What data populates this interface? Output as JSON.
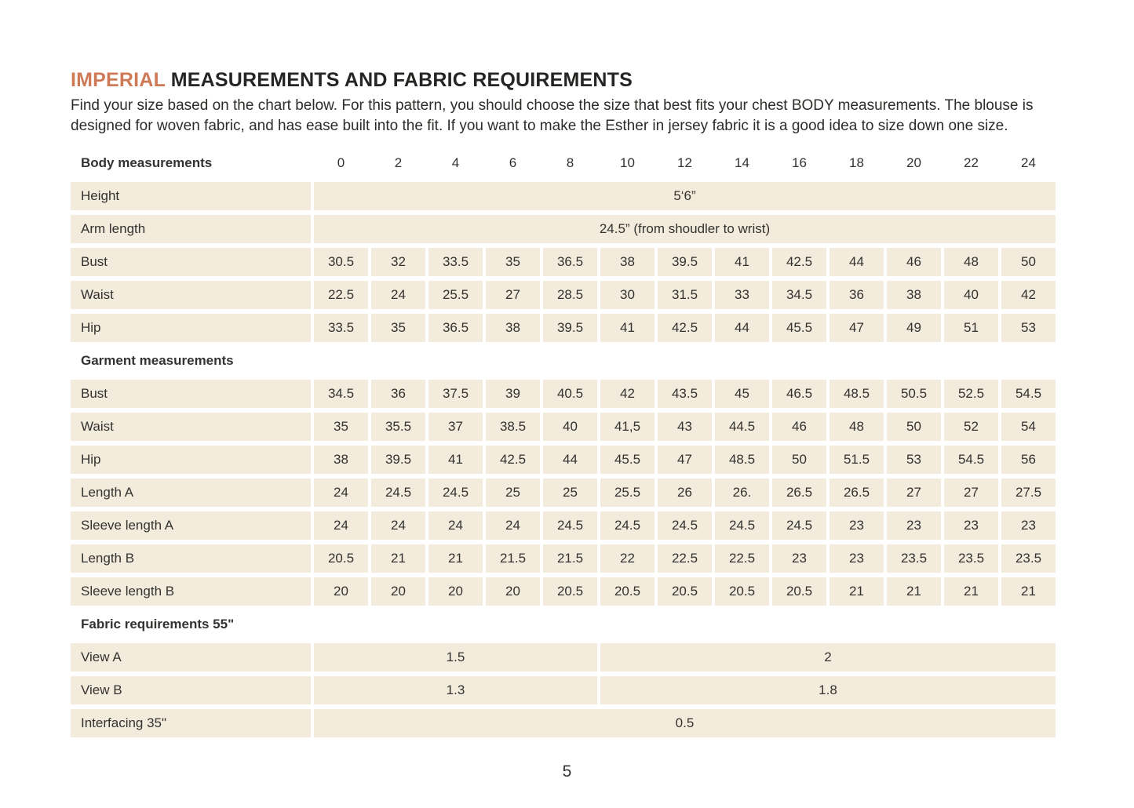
{
  "colors": {
    "accent_orange": "#ce7a57",
    "cell_beige": "#f3ecdc",
    "text_dark": "#2e2c29"
  },
  "page": {
    "title_accent": "IMPERIAL",
    "title_rest": " MEASUREMENTS AND FABRIC REQUIREMENTS",
    "intro": "Find your size based on the chart below. For this pattern, you should choose the size that best fits your chest BODY measurements.  The blouse is designed for woven fabric, and has ease built into the fit. If you want to make the Esther in jersey fabric it is a good idea to size down one size.",
    "page_number": "5"
  },
  "table": {
    "rows": [
      {
        "kind": "sizes",
        "label": "Body measurements",
        "sizes": [
          "0",
          "2",
          "4",
          "6",
          "8",
          "10",
          "12",
          "14",
          "16",
          "18",
          "20",
          "22",
          "24"
        ]
      },
      {
        "kind": "merged",
        "label": "Height",
        "cells": [
          {
            "value": "5‘6”",
            "span": 13
          }
        ]
      },
      {
        "kind": "merged",
        "label": "Arm length",
        "cells": [
          {
            "value": "24.5” (from shoudler to wrist)",
            "span": 13
          }
        ]
      },
      {
        "kind": "data",
        "label": "Bust",
        "values": [
          "30.5",
          "32",
          "33.5",
          "35",
          "36.5",
          "38",
          "39.5",
          "41",
          "42.5",
          "44",
          "46",
          "48",
          "50"
        ]
      },
      {
        "kind": "data",
        "label": "Waist",
        "values": [
          "22.5",
          "24",
          "25.5",
          "27",
          "28.5",
          "30",
          "31.5",
          "33",
          "34.5",
          "36",
          "38",
          "40",
          "42"
        ]
      },
      {
        "kind": "data",
        "label": "Hip",
        "values": [
          "33.5",
          "35",
          "36.5",
          "38",
          "39.5",
          "41",
          "42.5",
          "44",
          "45.5",
          "47",
          "49",
          "51",
          "53"
        ]
      },
      {
        "kind": "section",
        "label": "Garment measurements"
      },
      {
        "kind": "data",
        "label": "Bust",
        "values": [
          "34.5",
          "36",
          "37.5",
          "39",
          "40.5",
          "42",
          "43.5",
          "45",
          "46.5",
          "48.5",
          "50.5",
          "52.5",
          "54.5"
        ]
      },
      {
        "kind": "data",
        "label": "Waist",
        "values": [
          "35",
          "35.5",
          "37",
          "38.5",
          "40",
          "41,5",
          "43",
          "44.5",
          "46",
          "48",
          "50",
          "52",
          "54"
        ]
      },
      {
        "kind": "data",
        "label": "Hip",
        "values": [
          "38",
          "39.5",
          "41",
          "42.5",
          "44",
          "45.5",
          "47",
          "48.5",
          "50",
          "51.5",
          "53",
          "54.5",
          "56"
        ]
      },
      {
        "kind": "data",
        "label": "Length A",
        "values": [
          "24",
          "24.5",
          "24.5",
          "25",
          "25",
          "25.5",
          "26",
          "26.",
          "26.5",
          "26.5",
          "27",
          "27",
          "27.5"
        ]
      },
      {
        "kind": "data",
        "label": "Sleeve length A",
        "values": [
          "24",
          "24",
          "24",
          "24",
          "24.5",
          "24.5",
          "24.5",
          "24.5",
          "24.5",
          "23",
          "23",
          "23",
          "23"
        ]
      },
      {
        "kind": "data",
        "label": "Length B",
        "values": [
          "20.5",
          "21",
          "21",
          "21.5",
          "21.5",
          "22",
          "22.5",
          "22.5",
          "23",
          "23",
          "23.5",
          "23.5",
          "23.5"
        ]
      },
      {
        "kind": "data",
        "label": "Sleeve length B",
        "values": [
          "20",
          "20",
          "20",
          "20",
          "20.5",
          "20.5",
          "20.5",
          "20.5",
          "20.5",
          "21",
          "21",
          "21",
          "21"
        ]
      },
      {
        "kind": "section",
        "label": "Fabric requirements 55\""
      },
      {
        "kind": "merged",
        "label": "View A",
        "cells": [
          {
            "value": "1.5",
            "span": 5
          },
          {
            "value": "2",
            "span": 8
          }
        ]
      },
      {
        "kind": "merged",
        "label": "View B",
        "cells": [
          {
            "value": "1.3",
            "span": 5
          },
          {
            "value": "1.8",
            "span": 8
          }
        ]
      },
      {
        "kind": "merged",
        "label": "Interfacing 35\"",
        "cells": [
          {
            "value": "0.5",
            "span": 13
          }
        ]
      }
    ]
  }
}
